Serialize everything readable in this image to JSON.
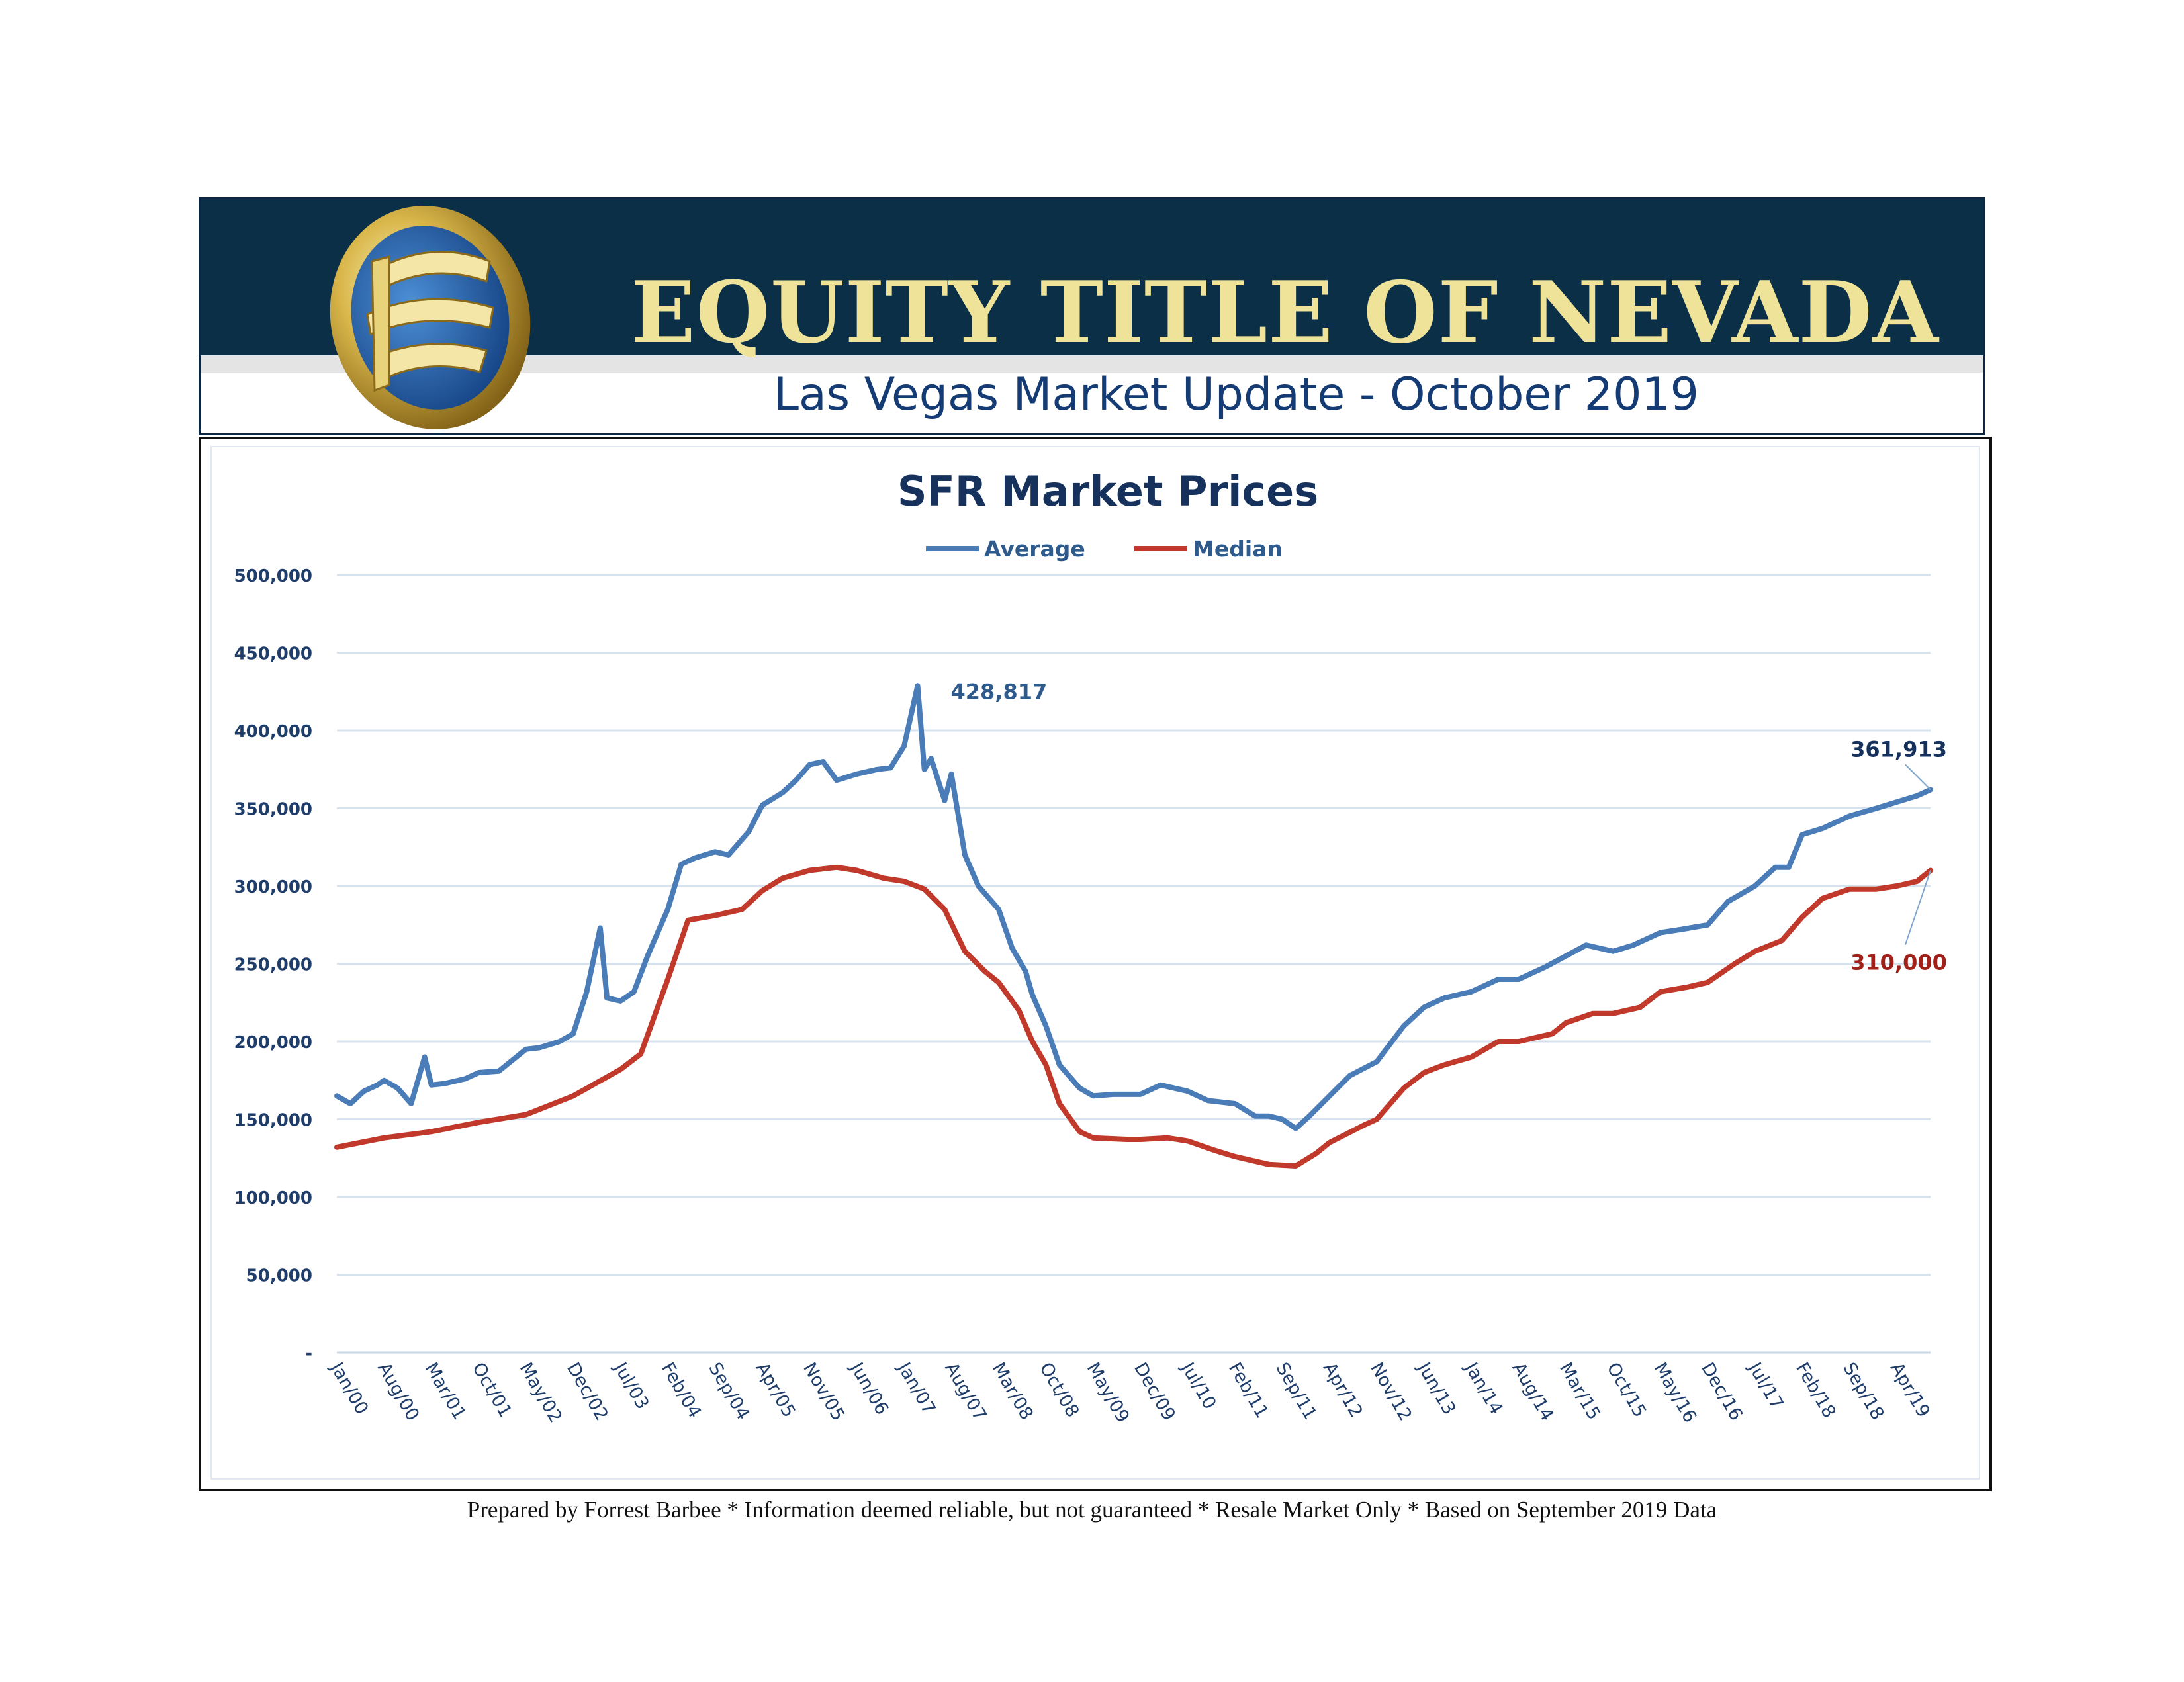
{
  "header": {
    "brand": "EQUITY TITLE OF NEVADA",
    "subtitle": "Las Vegas Market Update - October 2019"
  },
  "footer": {
    "text": "Prepared by Forrest Barbee * Information deemed reliable, but not guaranteed * Resale Market Only * Based on September 2019 Data"
  },
  "colors": {
    "header_band": "#0a2f47",
    "brand_text": "#efe39a",
    "subtitle_text": "#143b73",
    "average": "#4a7cb8",
    "median": "#c0392b",
    "grid": "#d6e2ee"
  },
  "logo": {
    "icon": "equity-title-logo"
  },
  "chart_data": {
    "type": "line",
    "title": "SFR Market Prices",
    "ylim": [
      0,
      500000
    ],
    "yticks": [
      0,
      50000,
      100000,
      150000,
      200000,
      250000,
      300000,
      350000,
      400000,
      450000,
      500000
    ],
    "ytick_labels": [
      "-",
      "50,000",
      "100,000",
      "150,000",
      "200,000",
      "250,000",
      "300,000",
      "350,000",
      "400,000",
      "450,000",
      "500,000"
    ],
    "x_tick_labels": [
      "Jan/00",
      "Aug/00",
      "Mar/01",
      "Oct/01",
      "May/02",
      "Dec/02",
      "Jul/03",
      "Feb/04",
      "Sep/04",
      "Apr/05",
      "Nov/05",
      "Jun/06",
      "Jan/07",
      "Aug/07",
      "Mar/08",
      "Oct/08",
      "May/09",
      "Dec/09",
      "Jul/10",
      "Feb/11",
      "Sep/11",
      "Apr/12",
      "Nov/12",
      "Jun/13",
      "Jan/14",
      "Aug/14",
      "Mar/15",
      "Oct/15",
      "May/16",
      "Dec/16",
      "Jul/17",
      "Feb/18",
      "Sep/18",
      "Apr/19"
    ],
    "x_range": [
      "Jan/00",
      "Sep/19"
    ],
    "grid": true,
    "legend": "top-center",
    "series": [
      {
        "name": "Average",
        "color": "#4a7cb8",
        "points": [
          [
            "Jan/00",
            165000
          ],
          [
            "Mar/00",
            160000
          ],
          [
            "May/00",
            168000
          ],
          [
            "Jul/00",
            172000
          ],
          [
            "Aug/00",
            175000
          ],
          [
            "Oct/00",
            170000
          ],
          [
            "Dec/00",
            160000
          ],
          [
            "Feb/01",
            190000
          ],
          [
            "Mar/01",
            172000
          ],
          [
            "May/01",
            173000
          ],
          [
            "Aug/01",
            176000
          ],
          [
            "Oct/01",
            180000
          ],
          [
            "Jan/02",
            181000
          ],
          [
            "Mar/02",
            188000
          ],
          [
            "May/02",
            195000
          ],
          [
            "Jul/02",
            196000
          ],
          [
            "Oct/02",
            200000
          ],
          [
            "Dec/02",
            205000
          ],
          [
            "Feb/03",
            232000
          ],
          [
            "Apr/03",
            273000
          ],
          [
            "May/03",
            228000
          ],
          [
            "Jul/03",
            226000
          ],
          [
            "Sep/03",
            232000
          ],
          [
            "Nov/03",
            255000
          ],
          [
            "Feb/04",
            285000
          ],
          [
            "Apr/04",
            314000
          ],
          [
            "Jun/04",
            318000
          ],
          [
            "Sep/04",
            322000
          ],
          [
            "Nov/04",
            320000
          ],
          [
            "Feb/05",
            335000
          ],
          [
            "Apr/05",
            352000
          ],
          [
            "Jul/05",
            360000
          ],
          [
            "Sep/05",
            368000
          ],
          [
            "Nov/05",
            378000
          ],
          [
            "Jan/06",
            380000
          ],
          [
            "Mar/06",
            368000
          ],
          [
            "Jun/06",
            372000
          ],
          [
            "Sep/06",
            375000
          ],
          [
            "Nov/06",
            376000
          ],
          [
            "Jan/07",
            390000
          ],
          [
            "Mar/07",
            428817
          ],
          [
            "Apr/07",
            375000
          ],
          [
            "May/07",
            382000
          ],
          [
            "Jul/07",
            355000
          ],
          [
            "Aug/07",
            372000
          ],
          [
            "Oct/07",
            320000
          ],
          [
            "Dec/07",
            300000
          ],
          [
            "Mar/08",
            285000
          ],
          [
            "May/08",
            260000
          ],
          [
            "Jul/08",
            245000
          ],
          [
            "Aug/08",
            230000
          ],
          [
            "Oct/08",
            210000
          ],
          [
            "Dec/08",
            185000
          ],
          [
            "Mar/09",
            170000
          ],
          [
            "May/09",
            165000
          ],
          [
            "Aug/09",
            166000
          ],
          [
            "Dec/09",
            166000
          ],
          [
            "Mar/10",
            172000
          ],
          [
            "Jul/10",
            168000
          ],
          [
            "Oct/10",
            162000
          ],
          [
            "Feb/11",
            160000
          ],
          [
            "May/11",
            152000
          ],
          [
            "Jul/11",
            152000
          ],
          [
            "Sep/11",
            150000
          ],
          [
            "Nov/11",
            144000
          ],
          [
            "Jan/12",
            152000
          ],
          [
            "Apr/12",
            165000
          ],
          [
            "Jul/12",
            178000
          ],
          [
            "Nov/12",
            187000
          ],
          [
            "Mar/13",
            210000
          ],
          [
            "Jun/13",
            222000
          ],
          [
            "Sep/13",
            228000
          ],
          [
            "Jan/14",
            232000
          ],
          [
            "May/14",
            240000
          ],
          [
            "Aug/14",
            240000
          ],
          [
            "Dec/14",
            248000
          ],
          [
            "Mar/15",
            255000
          ],
          [
            "Jun/15",
            262000
          ],
          [
            "Oct/15",
            258000
          ],
          [
            "Jan/16",
            262000
          ],
          [
            "May/16",
            270000
          ],
          [
            "Aug/16",
            272000
          ],
          [
            "Dec/16",
            275000
          ],
          [
            "Mar/17",
            290000
          ],
          [
            "Jul/17",
            300000
          ],
          [
            "Oct/17",
            312000
          ],
          [
            "Dec/17",
            312000
          ],
          [
            "Feb/18",
            333000
          ],
          [
            "May/18",
            337000
          ],
          [
            "Sep/18",
            345000
          ],
          [
            "Jan/19",
            350000
          ],
          [
            "Apr/19",
            354000
          ],
          [
            "Jul/19",
            358000
          ],
          [
            "Sep/19",
            361913
          ]
        ]
      },
      {
        "name": "Median",
        "color": "#c0392b",
        "points": [
          [
            "Jan/00",
            132000
          ],
          [
            "Aug/00",
            138000
          ],
          [
            "Mar/01",
            142000
          ],
          [
            "Oct/01",
            148000
          ],
          [
            "May/02",
            153000
          ],
          [
            "Dec/02",
            165000
          ],
          [
            "Jul/03",
            182000
          ],
          [
            "Oct/03",
            192000
          ],
          [
            "Feb/04",
            240000
          ],
          [
            "May/04",
            278000
          ],
          [
            "Sep/04",
            281000
          ],
          [
            "Jan/05",
            285000
          ],
          [
            "Apr/05",
            297000
          ],
          [
            "Jul/05",
            305000
          ],
          [
            "Nov/05",
            310000
          ],
          [
            "Mar/06",
            312000
          ],
          [
            "Jun/06",
            310000
          ],
          [
            "Oct/06",
            305000
          ],
          [
            "Jan/07",
            303000
          ],
          [
            "Apr/07",
            298000
          ],
          [
            "Jul/07",
            285000
          ],
          [
            "Oct/07",
            258000
          ],
          [
            "Jan/08",
            245000
          ],
          [
            "Mar/08",
            238000
          ],
          [
            "Jun/08",
            220000
          ],
          [
            "Aug/08",
            200000
          ],
          [
            "Oct/08",
            185000
          ],
          [
            "Dec/08",
            160000
          ],
          [
            "Mar/09",
            142000
          ],
          [
            "May/09",
            138000
          ],
          [
            "Oct/09",
            137000
          ],
          [
            "Dec/09",
            137000
          ],
          [
            "Apr/10",
            138000
          ],
          [
            "Jul/10",
            136000
          ],
          [
            "Nov/10",
            130000
          ],
          [
            "Feb/11",
            126000
          ],
          [
            "Jul/11",
            121000
          ],
          [
            "Nov/11",
            120000
          ],
          [
            "Feb/12",
            128000
          ],
          [
            "Apr/12",
            135000
          ],
          [
            "Sep/12",
            146000
          ],
          [
            "Nov/12",
            150000
          ],
          [
            "Mar/13",
            170000
          ],
          [
            "Jun/13",
            180000
          ],
          [
            "Sep/13",
            185000
          ],
          [
            "Jan/14",
            190000
          ],
          [
            "May/14",
            200000
          ],
          [
            "Aug/14",
            200000
          ],
          [
            "Jan/15",
            205000
          ],
          [
            "Mar/15",
            212000
          ],
          [
            "Jul/15",
            218000
          ],
          [
            "Oct/15",
            218000
          ],
          [
            "Feb/16",
            222000
          ],
          [
            "May/16",
            232000
          ],
          [
            "Sep/16",
            235000
          ],
          [
            "Dec/16",
            238000
          ],
          [
            "Apr/17",
            250000
          ],
          [
            "Jul/17",
            258000
          ],
          [
            "Nov/17",
            265000
          ],
          [
            "Feb/18",
            280000
          ],
          [
            "May/18",
            292000
          ],
          [
            "Sep/18",
            298000
          ],
          [
            "Jan/19",
            298000
          ],
          [
            "Apr/19",
            300000
          ],
          [
            "Jul/19",
            303000
          ],
          [
            "Sep/19",
            310000
          ]
        ]
      }
    ],
    "annotations": [
      {
        "text": "428,817",
        "series": "Average",
        "x": "Mar/07",
        "y": 428817
      },
      {
        "text": "361,913",
        "series": "Average",
        "x": "Sep/19",
        "y": 361913
      },
      {
        "text": "310,000",
        "series": "Median",
        "x": "Sep/19",
        "y": 310000
      }
    ]
  }
}
